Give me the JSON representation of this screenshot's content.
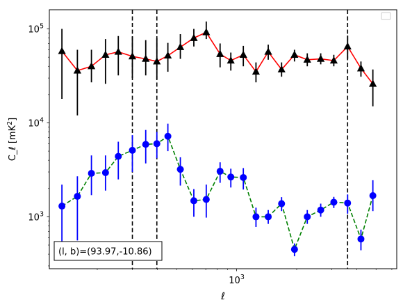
{
  "chart_data": {
    "type": "scatter",
    "x_scale": "log",
    "y_scale": "log",
    "xlabel": "ℓ",
    "ylabel": "C_ℓ  [mK²]",
    "x_tick_labels": [
      {
        "value": 1000,
        "label": "10^3"
      }
    ],
    "y_tick_labels": [
      {
        "value": 1000,
        "label": "10^3"
      },
      {
        "value": 10000,
        "label": "10^4"
      },
      {
        "value": 100000,
        "label": "10^5"
      }
    ],
    "xlim": [
      115,
      6350
    ],
    "ylim": [
      280,
      160000
    ],
    "annotation": "(l, b)=(93.97,-10.86)",
    "legend": "top-right",
    "legend_entries": [],
    "vertical_dashed_lines": [
      300,
      398,
      3600
    ],
    "series": [
      {
        "marker": "triangle",
        "marker_color": "#000000",
        "line_color": "#ff0000",
        "line_style": "solid",
        "errorbar_color": "#000000",
        "x": [
          133,
          159,
          187,
          220,
          255,
          300,
          350,
          398,
          452,
          522,
          610,
          704,
          826,
          935,
          1080,
          1250,
          1440,
          1680,
          1950,
          2260,
          2640,
          3070,
          3600,
          4200,
          4820
        ],
        "y": [
          58000,
          36000,
          40000,
          53000,
          57000,
          51000,
          48000,
          45000,
          52000,
          64000,
          80000,
          92000,
          54000,
          46000,
          53000,
          35000,
          57000,
          37000,
          53000,
          47000,
          48000,
          46000,
          65000,
          38000,
          26000
        ],
        "y_low": [
          18000,
          12000,
          27000,
          26000,
          32000,
          30000,
          32000,
          29000,
          35000,
          48000,
          65000,
          78000,
          39000,
          36000,
          40000,
          27000,
          47000,
          31000,
          45000,
          40000,
          42000,
          40000,
          48000,
          31000,
          15000
        ],
        "y_high": [
          100000,
          60000,
          60000,
          78000,
          84000,
          83000,
          76000,
          80000,
          71000,
          88000,
          100000,
          120000,
          70000,
          56000,
          66000,
          44000,
          68000,
          44000,
          60000,
          55000,
          55000,
          53000,
          85000,
          45000,
          37000
        ]
      },
      {
        "marker": "circle",
        "marker_color": "#0000ff",
        "line_color": "#008000",
        "line_style": "dashed",
        "errorbar_color": "#0000ff",
        "x": [
          133,
          159,
          187,
          220,
          255,
          300,
          350,
          398,
          452,
          522,
          610,
          704,
          826,
          935,
          1080,
          1250,
          1440,
          1680,
          1950,
          2260,
          2640,
          3070,
          3600,
          4200,
          4820
        ],
        "y": [
          1300,
          1650,
          2900,
          2950,
          4400,
          5100,
          5900,
          6000,
          7200,
          3200,
          1480,
          1530,
          3050,
          2650,
          2620,
          1000,
          1000,
          1380,
          450,
          1000,
          1180,
          1430,
          1400,
          580,
          1680
        ],
        "y_low": [
          480,
          560,
          1700,
          1900,
          2500,
          3000,
          3700,
          4200,
          5000,
          2150,
          1000,
          980,
          2300,
          2050,
          1950,
          780,
          840,
          1150,
          380,
          840,
          1000,
          1240,
          1080,
          440,
          1150
        ],
        "y_high": [
          2200,
          2700,
          4500,
          4500,
          6300,
          7400,
          8400,
          8000,
          9800,
          4300,
          1970,
          2200,
          3800,
          3250,
          3300,
          1250,
          1180,
          1620,
          520,
          1180,
          1380,
          1630,
          1730,
          730,
          2450
        ]
      }
    ]
  }
}
